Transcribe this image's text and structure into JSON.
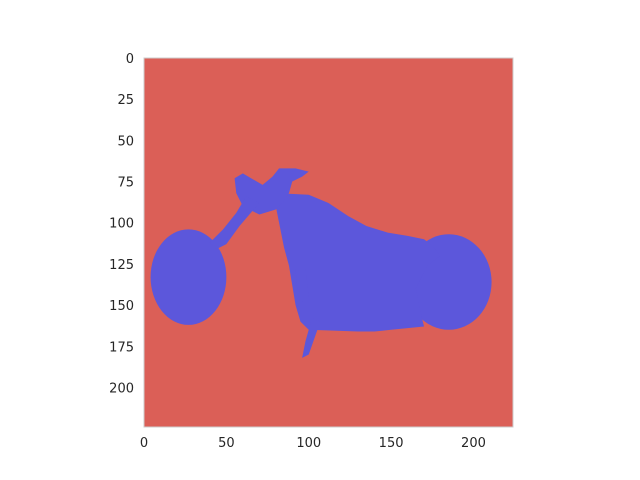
{
  "colors": {
    "background": "#db5f57",
    "foreground": "#5c57db",
    "frame": "#cccccc",
    "text": "#262626",
    "figure": "#ffffff"
  },
  "chart_data": {
    "type": "heatmap",
    "description_of_values": "binary segmentation mask: 0 = background (red), 1 = motorcycle (blue)",
    "xlim": [
      0,
      224
    ],
    "ylim": [
      224,
      0
    ],
    "xticks": [
      0,
      50,
      100,
      150,
      200
    ],
    "yticks": [
      0,
      25,
      50,
      75,
      100,
      125,
      150,
      175,
      200
    ],
    "xtick_labels": [
      "0",
      "50",
      "100",
      "150",
      "200"
    ],
    "ytick_labels": [
      "0",
      "25",
      "50",
      "75",
      "100",
      "125",
      "150",
      "175",
      "200"
    ],
    "grid": false,
    "regions_value_1": [
      {
        "part": "front-wheel",
        "shape": "ellipse",
        "cx": 27,
        "cy": 133,
        "rx": 23,
        "ry": 29
      },
      {
        "part": "rear-wheel",
        "shape": "ellipse",
        "cx": 185,
        "cy": 136,
        "rx": 26,
        "ry": 29
      },
      {
        "part": "body",
        "shape": "polygon",
        "points": [
          [
            80,
            82
          ],
          [
            100,
            83
          ],
          [
            112,
            88
          ],
          [
            124,
            96
          ],
          [
            135,
            102
          ],
          [
            148,
            106
          ],
          [
            160,
            108
          ],
          [
            170,
            110
          ],
          [
            175,
            114
          ],
          [
            180,
            120
          ],
          [
            172,
            126
          ],
          [
            165,
            140
          ],
          [
            168,
            155
          ],
          [
            170,
            163
          ],
          [
            150,
            165
          ],
          [
            140,
            166
          ],
          [
            130,
            166
          ],
          [
            100,
            165
          ],
          [
            95,
            160
          ],
          [
            92,
            150
          ],
          [
            90,
            138
          ],
          [
            88,
            126
          ],
          [
            85,
            115
          ],
          [
            82,
            100
          ],
          [
            80,
            90
          ]
        ]
      },
      {
        "part": "handlebar",
        "shape": "polygon",
        "points": [
          [
            55,
            73
          ],
          [
            60,
            70
          ],
          [
            65,
            73
          ],
          [
            72,
            77
          ],
          [
            78,
            72
          ],
          [
            82,
            67
          ],
          [
            92,
            67
          ],
          [
            100,
            69
          ],
          [
            96,
            72
          ],
          [
            90,
            75
          ],
          [
            88,
            82
          ],
          [
            84,
            88
          ],
          [
            80,
            92
          ],
          [
            70,
            95
          ],
          [
            60,
            90
          ],
          [
            56,
            82
          ]
        ]
      },
      {
        "part": "fork",
        "shape": "polygon",
        "points": [
          [
            62,
            84
          ],
          [
            70,
            88
          ],
          [
            58,
            102
          ],
          [
            50,
            113
          ],
          [
            44,
            116
          ],
          [
            40,
            112
          ],
          [
            48,
            104
          ],
          [
            56,
            94
          ]
        ]
      },
      {
        "part": "kickstand",
        "shape": "polygon",
        "points": [
          [
            102,
            158
          ],
          [
            107,
            160
          ],
          [
            100,
            180
          ],
          [
            96,
            182
          ],
          [
            98,
            172
          ]
        ]
      },
      {
        "part": "exhaust",
        "shape": "polygon",
        "points": [
          [
            92,
            128
          ],
          [
            98,
            128
          ],
          [
            100,
            145
          ],
          [
            96,
            148
          ],
          [
            93,
            140
          ]
        ]
      }
    ]
  }
}
